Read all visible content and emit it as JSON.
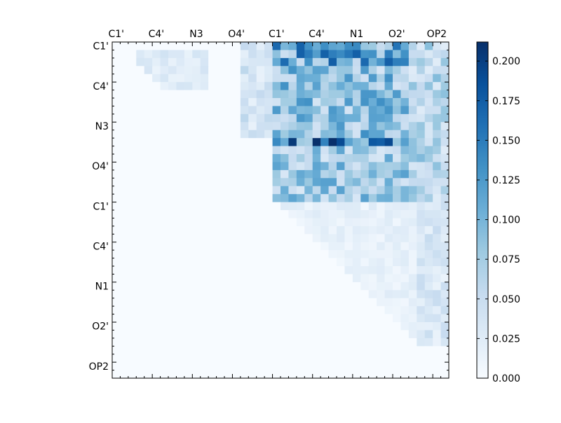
{
  "chart_data": {
    "type": "heatmap",
    "title": "",
    "xlabel": "",
    "ylabel": "",
    "size": 42,
    "x_tick_labels": [
      "C1'",
      "C4'",
      "N3",
      "O4'",
      "C1'",
      "C4'",
      "N1",
      "O2'",
      "OP2"
    ],
    "y_tick_labels": [
      "C1'",
      "C4'",
      "N3",
      "O4'",
      "C1'",
      "C4'",
      "N1",
      "O2'",
      "OP2"
    ],
    "label_interval": 5,
    "colormap": "Blues",
    "colorbar": {
      "vmin": 0.0,
      "vmax": 0.212,
      "ticks": [
        "0.000",
        "0.025",
        "0.050",
        "0.075",
        "0.100",
        "0.125",
        "0.150",
        "0.175",
        "0.200"
      ]
    },
    "values_note": "upper-triangular matrix, values estimated by region",
    "regions": [
      {
        "rows": [
          1,
          6
        ],
        "cols": [
          3,
          12
        ],
        "value": 0.03
      },
      {
        "rows": [
          0,
          12
        ],
        "cols": [
          16,
          20
        ],
        "value": 0.045
      },
      {
        "rows": [
          0,
          12
        ],
        "cols": [
          20,
          37
        ],
        "value": 0.1
      },
      {
        "rows": [
          0,
          3
        ],
        "cols": [
          20,
          37
        ],
        "value": 0.13
      },
      {
        "rows": [
          12,
          13
        ],
        "cols": [
          20,
          37
        ],
        "value": 0.19
      },
      {
        "rows": [
          13,
          20
        ],
        "cols": [
          20,
          37
        ],
        "value": 0.09
      },
      {
        "rows": [
          0,
          20
        ],
        "cols": [
          37,
          42
        ],
        "value": 0.07
      },
      {
        "rows": [
          20,
          38
        ],
        "cols": [
          20,
          42
        ],
        "value": 0.02
      },
      {
        "rows": [
          20,
          38
        ],
        "cols": [
          38,
          42
        ],
        "value": 0.04
      }
    ]
  }
}
